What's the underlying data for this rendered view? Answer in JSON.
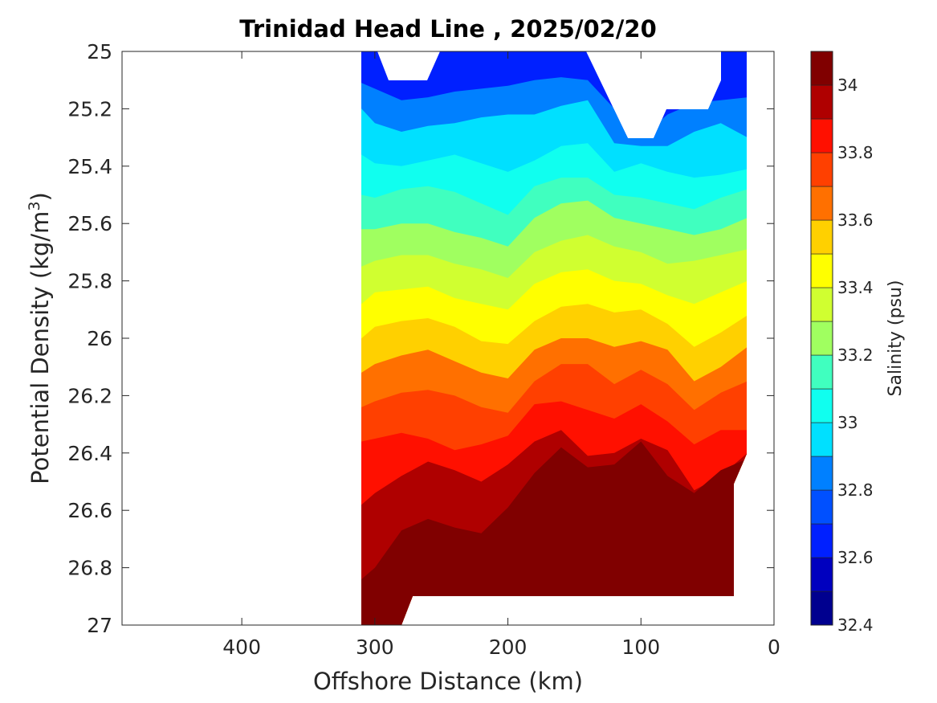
{
  "chart_data": {
    "type": "heatmap",
    "plot_style": "filled contour",
    "title": "Trinidad Head Line , 2025/02/20",
    "xlabel": "Offshore Distance (km)",
    "ylabel_main": "Potential Density (kg/m",
    "ylabel_sup": "3",
    "ylabel_close": ")",
    "x_axis": {
      "reversed": true,
      "xlim": [
        490,
        0
      ],
      "ticks": [
        400,
        300,
        200,
        100,
        0
      ],
      "tick_labels": [
        "400",
        "300",
        "200",
        "100",
        "0"
      ]
    },
    "y_axis": {
      "reversed": true,
      "ylim": [
        25,
        27
      ],
      "ticks": [
        25,
        25.2,
        25.4,
        25.6,
        25.8,
        26,
        26.2,
        26.4,
        26.6,
        26.8,
        27
      ],
      "tick_labels": [
        "25",
        "25.2",
        "25.4",
        "25.6",
        "25.8",
        "26",
        "26.2",
        "26.4",
        "26.6",
        "26.8",
        "27"
      ]
    },
    "colorbar": {
      "label": "Salinity (psu)",
      "range": [
        32.4,
        34.1
      ],
      "tick_values": [
        32.4,
        32.6,
        32.8,
        33,
        33.2,
        33.4,
        33.6,
        33.8,
        34
      ],
      "tick_labels": [
        "32.4",
        "32.6",
        "32.8",
        "33",
        "33.2",
        "33.4",
        "33.6",
        "33.8",
        "34"
      ],
      "levels": [
        32.4,
        32.5,
        32.6,
        32.7,
        32.8,
        32.9,
        33.0,
        33.1,
        33.2,
        33.3,
        33.4,
        33.5,
        33.6,
        33.7,
        33.8,
        33.9,
        34.0,
        34.1
      ],
      "colors": [
        "#00008f",
        "#0000bf",
        "#0000ef",
        "#0020ff",
        "#0050ff",
        "#0080ff",
        "#00b0ff",
        "#00e0ff",
        "#10ffef",
        "#40ffbf",
        "#70ff8f",
        "#a0ff60",
        "#d0ff30",
        "#ffff00",
        "#ffd000",
        "#ffa000",
        "#ff7000",
        "#ff4000",
        "#ff1000",
        "#df0000",
        "#af0000",
        "#800000"
      ]
    },
    "data_extent": {
      "x_range_km": [
        310,
        20
      ],
      "y_range": [
        25,
        27
      ]
    },
    "isolines": [
      {
        "level": 32.8,
        "x": [
          310,
          300,
          280,
          260,
          240,
          220,
          200,
          180,
          160,
          140,
          120,
          100,
          80,
          60,
          40,
          20
        ],
        "y": [
          25.11,
          25.13,
          25.17,
          25.16,
          25.14,
          25.13,
          25.12,
          25.1,
          25.09,
          25.1,
          25.2,
          25.3,
          25.22,
          25.18,
          25.17,
          25.16
        ]
      },
      {
        "level": 32.9,
        "x": [
          310,
          300,
          280,
          260,
          240,
          220,
          200,
          180,
          160,
          140,
          120,
          100,
          80,
          60,
          40,
          20
        ],
        "y": [
          25.2,
          25.25,
          25.28,
          25.26,
          25.25,
          25.23,
          25.22,
          25.22,
          25.19,
          25.17,
          25.32,
          25.33,
          25.33,
          25.28,
          25.25,
          25.3
        ]
      },
      {
        "level": 33.0,
        "x": [
          310,
          300,
          280,
          260,
          240,
          220,
          200,
          180,
          160,
          140,
          120,
          100,
          80,
          60,
          40,
          20
        ],
        "y": [
          25.36,
          25.39,
          25.4,
          25.38,
          25.36,
          25.39,
          25.42,
          25.38,
          25.33,
          25.32,
          25.42,
          25.39,
          25.42,
          25.44,
          25.43,
          25.41
        ]
      },
      {
        "level": 33.1,
        "x": [
          310,
          300,
          280,
          260,
          240,
          220,
          200,
          180,
          160,
          140,
          120,
          100,
          80,
          60,
          40,
          20
        ],
        "y": [
          25.5,
          25.51,
          25.48,
          25.47,
          25.49,
          25.53,
          25.57,
          25.47,
          25.44,
          25.44,
          25.5,
          25.51,
          25.53,
          25.55,
          25.51,
          25.48
        ]
      },
      {
        "level": 33.2,
        "x": [
          310,
          300,
          280,
          260,
          240,
          220,
          200,
          180,
          160,
          140,
          120,
          100,
          80,
          60,
          40,
          20
        ],
        "y": [
          25.62,
          25.62,
          25.6,
          25.6,
          25.63,
          25.65,
          25.68,
          25.58,
          25.53,
          25.52,
          25.58,
          25.6,
          25.62,
          25.64,
          25.62,
          25.58
        ]
      },
      {
        "level": 33.3,
        "x": [
          310,
          300,
          280,
          260,
          240,
          220,
          200,
          180,
          160,
          140,
          120,
          100,
          80,
          60,
          40,
          20
        ],
        "y": [
          25.75,
          25.73,
          25.71,
          25.71,
          25.74,
          25.76,
          25.79,
          25.7,
          25.66,
          25.64,
          25.68,
          25.7,
          25.74,
          25.73,
          25.71,
          25.69
        ]
      },
      {
        "level": 33.4,
        "x": [
          310,
          300,
          280,
          260,
          240,
          220,
          200,
          180,
          160,
          140,
          120,
          100,
          80,
          60,
          40,
          20
        ],
        "y": [
          25.88,
          25.84,
          25.83,
          25.82,
          25.86,
          25.88,
          25.9,
          25.81,
          25.77,
          25.76,
          25.8,
          25.81,
          25.85,
          25.88,
          25.84,
          25.8
        ]
      },
      {
        "level": 33.5,
        "x": [
          310,
          300,
          280,
          260,
          240,
          220,
          200,
          180,
          160,
          140,
          120,
          100,
          80,
          60,
          40,
          20
        ],
        "y": [
          26.0,
          25.96,
          25.94,
          25.93,
          25.96,
          26.01,
          26.02,
          25.94,
          25.89,
          25.88,
          25.91,
          25.9,
          25.95,
          26.03,
          25.98,
          25.92
        ]
      },
      {
        "level": 33.6,
        "x": [
          310,
          300,
          280,
          260,
          240,
          220,
          200,
          180,
          160,
          140,
          120,
          100,
          80,
          60,
          40,
          20
        ],
        "y": [
          26.12,
          26.09,
          26.06,
          26.04,
          26.08,
          26.12,
          26.14,
          26.04,
          26.0,
          26.0,
          26.03,
          26.01,
          26.04,
          26.15,
          26.1,
          26.03
        ]
      },
      {
        "level": 33.7,
        "x": [
          310,
          300,
          280,
          260,
          240,
          220,
          200,
          180,
          160,
          140,
          120,
          100,
          80,
          60,
          40,
          20
        ],
        "y": [
          26.24,
          26.22,
          26.19,
          26.18,
          26.2,
          26.24,
          26.26,
          26.15,
          26.09,
          26.09,
          26.16,
          26.11,
          26.16,
          26.25,
          26.19,
          26.15
        ]
      },
      {
        "level": 33.8,
        "x": [
          310,
          300,
          280,
          260,
          240,
          220,
          200,
          180,
          160,
          140,
          120,
          100,
          80,
          60,
          40,
          20
        ],
        "y": [
          26.36,
          26.35,
          26.33,
          26.35,
          26.39,
          26.37,
          26.34,
          26.23,
          26.22,
          26.25,
          26.28,
          26.23,
          26.29,
          26.37,
          26.32,
          26.32
        ]
      },
      {
        "level": 33.9,
        "x": [
          310,
          300,
          280,
          260,
          240,
          220,
          200,
          180,
          160,
          140,
          120,
          100,
          80,
          60,
          40,
          20
        ],
        "y": [
          26.58,
          26.54,
          26.48,
          26.43,
          26.46,
          26.5,
          26.44,
          26.36,
          26.32,
          26.41,
          26.4,
          26.35,
          26.39,
          26.53,
          26.48,
          26.4
        ]
      },
      {
        "level": 34.0,
        "x": [
          310,
          300,
          280,
          260,
          240,
          220,
          200,
          180,
          160,
          140,
          120,
          100,
          80,
          60,
          40,
          20
        ],
        "y": [
          26.84,
          26.8,
          26.67,
          26.63,
          26.66,
          26.68,
          26.59,
          26.47,
          26.38,
          26.45,
          26.44,
          26.36,
          26.48,
          26.54,
          26.46,
          26.42
        ]
      },
      {
        "level": 34.1,
        "x": [
          310,
          300,
          280,
          260,
          240,
          220,
          200,
          180,
          160,
          140,
          120,
          100,
          80,
          60,
          40,
          20
        ],
        "y": [
          27.0,
          27.0,
          26.96,
          26.9,
          26.9,
          26.9,
          26.9,
          26.9,
          26.9,
          26.86,
          26.76,
          26.81,
          26.81,
          26.84,
          26.78,
          26.8
        ]
      }
    ]
  }
}
